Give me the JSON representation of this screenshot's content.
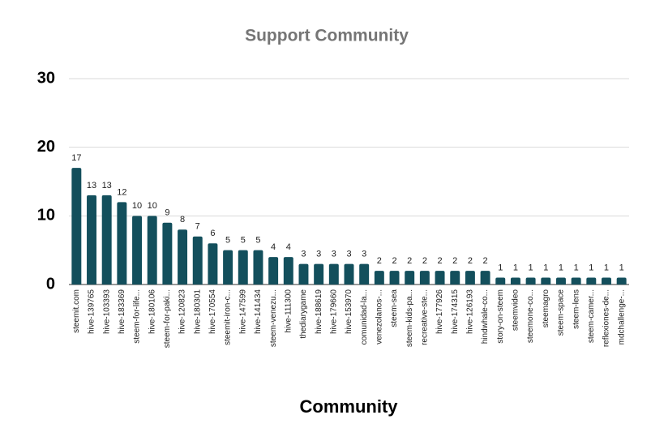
{
  "chart_data": {
    "type": "bar",
    "title": "Support Community",
    "x_label": "Community",
    "categories": [
      "steemit.com",
      "hive-139765",
      "hive-103393",
      "hive-183369",
      "steem-for-life...",
      "hive-180106",
      "steem-for-paki...",
      "hive-120823",
      "hive-180301",
      "hive-170554",
      "steemit-iron-c...",
      "hive-147599",
      "hive-141434",
      "steem-venezu...",
      "hive-111300",
      "thediarygame",
      "hive-188619",
      "hive-179660",
      "hive-153970",
      "comunidad-la...",
      "venezolanos-...",
      "steem-sea",
      "steem-kids-pa...",
      "recreative-ste...",
      "hive-177926",
      "hive-174315",
      "hive-126193",
      "hindwhale-co...",
      "story-on-steem",
      "steemvideo",
      "steemone-co...",
      "steemagro",
      "steem-space",
      "steem-lens",
      "steem-camer...",
      "reflexiones-de...",
      "mdchallenge-..."
    ],
    "values": [
      17,
      13,
      13,
      12,
      10,
      10,
      9,
      8,
      7,
      6,
      5,
      5,
      5,
      4,
      4,
      3,
      3,
      3,
      3,
      3,
      2,
      2,
      2,
      2,
      2,
      2,
      2,
      2,
      1,
      1,
      1,
      1,
      1,
      1,
      1,
      1,
      1
    ],
    "color": "#134f5c",
    "ylim": [
      0,
      30
    ],
    "yticks": [
      0,
      10,
      20,
      30
    ],
    "grid": true
  }
}
